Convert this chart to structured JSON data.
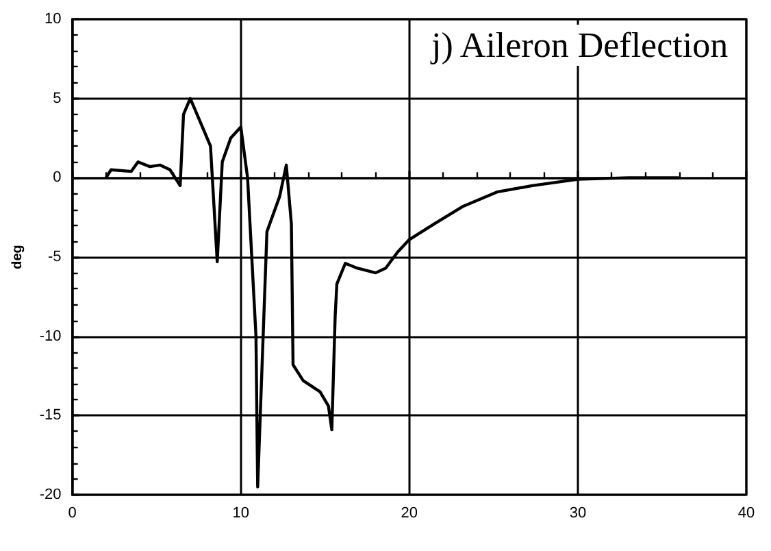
{
  "chart_data": {
    "type": "line",
    "title": "j) Aileron Deflection",
    "ylabel": "deg",
    "xlim": [
      0,
      40
    ],
    "xticks": [
      0,
      10,
      20,
      30,
      40
    ],
    "ylim": [
      -20,
      10
    ],
    "yticks": [
      -20,
      -15,
      -10,
      -5,
      0,
      5,
      10
    ],
    "grid": true,
    "marker": "none",
    "line_style": "solid",
    "series": [
      {
        "color": "#000000",
        "x": [
          2.0,
          2.3,
          3.5,
          3.9,
          4.6,
          5.2,
          5.8,
          6.4,
          6.6,
          7.0,
          7.8,
          8.2,
          8.6,
          8.9,
          9.4,
          10.0,
          10.4,
          10.9,
          11.0,
          11.55,
          12.3,
          12.7,
          13.0,
          13.1,
          13.7,
          14.7,
          15.2,
          15.4,
          15.6,
          15.7,
          16.2,
          16.9,
          18.0,
          18.6,
          19.3,
          20.0,
          21.5,
          23.2,
          25.2,
          27.3,
          30.0,
          33.0,
          36.0
        ],
        "values": [
          0.0,
          0.5,
          0.4,
          1.0,
          0.7,
          0.8,
          0.5,
          -0.5,
          4.0,
          5.0,
          3.0,
          2.0,
          -5.3,
          1.0,
          2.5,
          3.2,
          0.0,
          -10.0,
          -19.5,
          -3.4,
          -1.2,
          0.8,
          -2.9,
          -11.8,
          -12.8,
          -13.5,
          -14.4,
          -15.9,
          -8.7,
          -6.7,
          -5.4,
          -5.7,
          -6.0,
          -5.7,
          -4.7,
          -3.9,
          -2.9,
          -1.8,
          -0.9,
          -0.5,
          -0.1,
          0.0,
          0.0
        ]
      }
    ]
  }
}
